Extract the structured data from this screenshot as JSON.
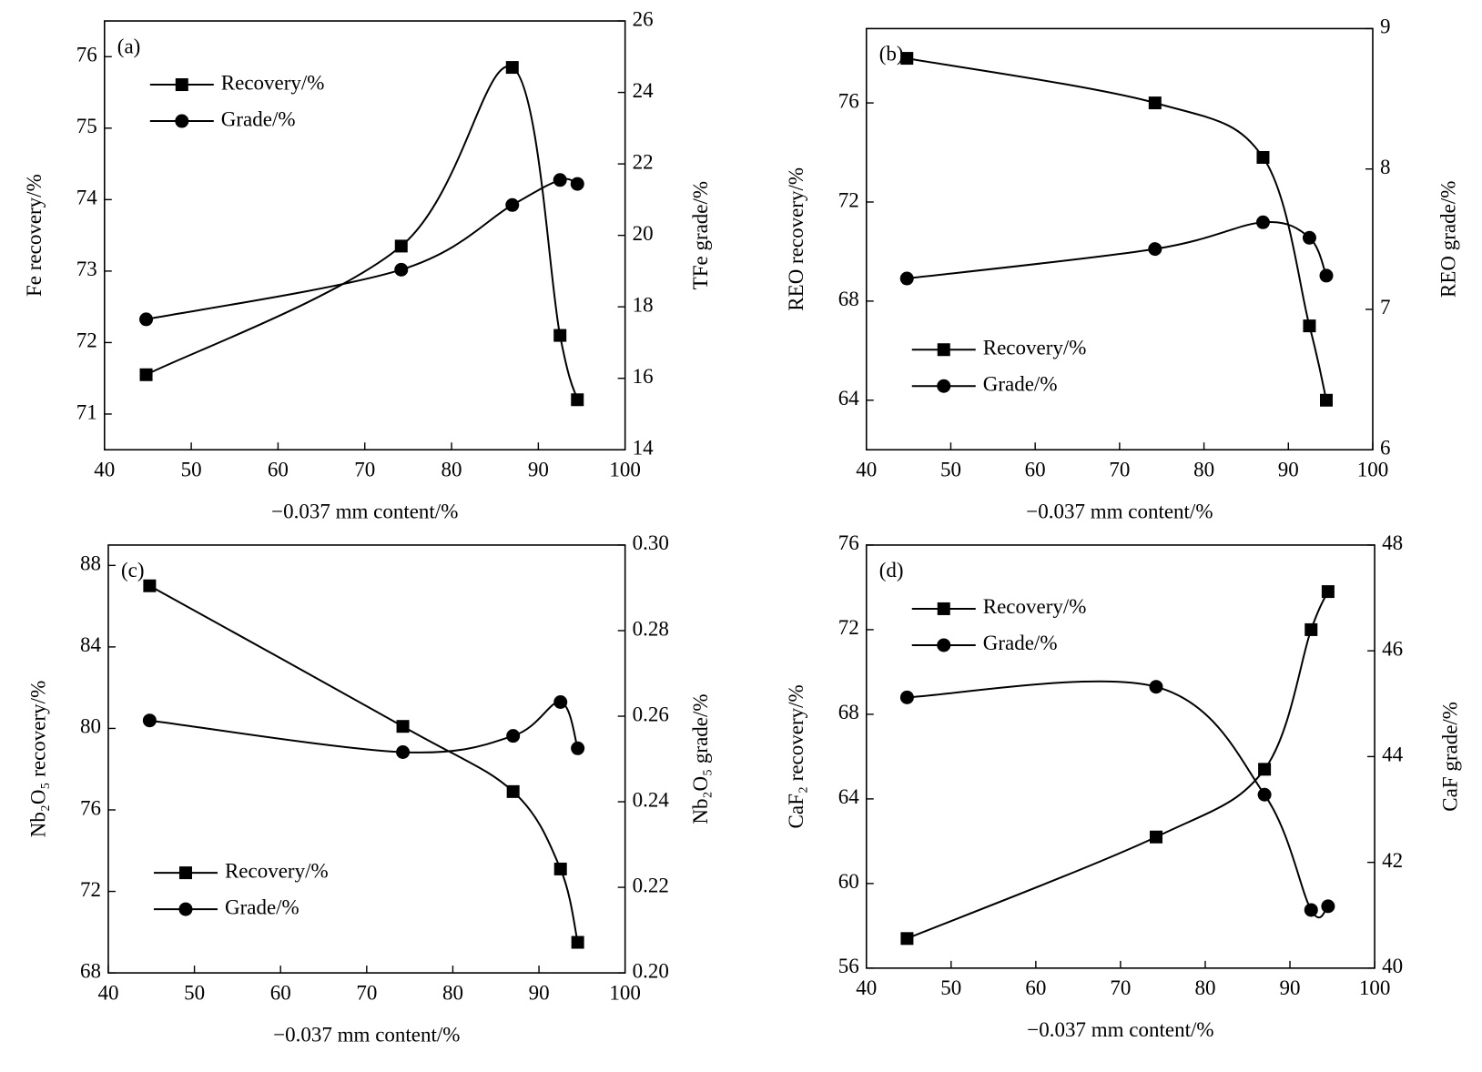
{
  "chart_data": [
    {
      "type": "line",
      "panel_label": "(a)",
      "xlabel": "−0.037 mm content/%",
      "ylabel": "Fe recovery/%",
      "y2label": "TFe grade/%",
      "x": [
        44.8,
        74.2,
        87,
        92.5,
        94.5
      ],
      "series": [
        {
          "name": "Recovery/%",
          "color": "#000000",
          "marker": "square",
          "axis": "y",
          "values": [
            71.55,
            73.35,
            75.85,
            72.1,
            71.2
          ]
        },
        {
          "name": "Grade/%",
          "color": "#000000",
          "marker": "circle",
          "axis": "y2",
          "values": [
            17.65,
            19.04,
            20.85,
            21.55,
            21.44
          ]
        }
      ],
      "xlim": [
        40,
        100
      ],
      "xticks": [
        40,
        50,
        60,
        70,
        80,
        90,
        100
      ],
      "ylim": [
        70.5,
        76.5
      ],
      "yticks": [
        71,
        72,
        73,
        74,
        75,
        76
      ],
      "y2lim": [
        14,
        26
      ],
      "y2ticks": [
        14,
        16,
        18,
        20,
        22,
        24,
        26
      ],
      "legend": "upper left"
    },
    {
      "type": "line",
      "panel_label": "(b)",
      "xlabel": "−0.037 mm content/%",
      "ylabel": "REO recovery/%",
      "y2label": "REO grade/%",
      "x": [
        44.8,
        74.2,
        87,
        92.5,
        94.5
      ],
      "series": [
        {
          "name": "Recovery/%",
          "color": "#000000",
          "marker": "square",
          "axis": "y",
          "values": [
            77.8,
            76.0,
            73.8,
            67.0,
            64.0
          ]
        },
        {
          "name": "Grade/%",
          "color": "#000000",
          "marker": "circle",
          "axis": "y2",
          "values": [
            7.22,
            7.43,
            7.62,
            7.51,
            7.24
          ]
        }
      ],
      "xlim": [
        40,
        100
      ],
      "xticks": [
        40,
        50,
        60,
        70,
        80,
        90,
        100
      ],
      "ylim": [
        62,
        79
      ],
      "yticks": [
        64,
        68,
        72,
        76
      ],
      "y2lim": [
        6,
        9
      ],
      "y2ticks": [
        6,
        7,
        8,
        9
      ],
      "legend": "lower left"
    },
    {
      "type": "line",
      "panel_label": "(c)",
      "xlabel": "−0.037 mm content/%",
      "ylabel": "Nb₂O₅ recovery/%",
      "y2label": "Nb₂O₅ grade/%",
      "x": [
        44.8,
        74.2,
        87,
        92.5,
        94.5
      ],
      "series": [
        {
          "name": "Recovery/%",
          "color": "#000000",
          "marker": "square",
          "axis": "y",
          "values": [
            87.0,
            80.1,
            76.9,
            73.1,
            69.5
          ]
        },
        {
          "name": "Grade/%",
          "color": "#000000",
          "marker": "circle",
          "axis": "y2",
          "values": [
            0.259,
            0.2516,
            0.2554,
            0.2633,
            0.2525
          ]
        }
      ],
      "xlim": [
        40,
        100
      ],
      "xticks": [
        40,
        50,
        60,
        70,
        80,
        90,
        100
      ],
      "ylim": [
        68,
        89
      ],
      "yticks": [
        68,
        72,
        76,
        80,
        84,
        88
      ],
      "y2lim": [
        0.2,
        0.3
      ],
      "y2ticks": [
        {
          "value": 0.2,
          "label": "0.20"
        },
        0.22,
        0.24,
        0.26,
        0.28,
        {
          "value": 0.3,
          "label": "0.30"
        }
      ],
      "legend": "lower left"
    },
    {
      "type": "line",
      "panel_label": "(d)",
      "xlabel": "−0.037 mm content/%",
      "ylabel": "CaF₂ recovery/%",
      "y2label": "CaF grade/%",
      "x": [
        44.8,
        74.2,
        87,
        92.5,
        94.5
      ],
      "series": [
        {
          "name": "Recovery/%",
          "color": "#000000",
          "marker": "square",
          "axis": "y",
          "values": [
            57.4,
            62.2,
            65.4,
            72.0,
            73.8
          ]
        },
        {
          "name": "Grade/%",
          "color": "#000000",
          "marker": "circle",
          "axis": "y2",
          "values": [
            45.12,
            45.32,
            43.28,
            41.1,
            41.17
          ]
        }
      ],
      "xlim": [
        40,
        100
      ],
      "xticks": [
        40,
        50,
        60,
        70,
        80,
        90,
        100
      ],
      "ylim": [
        56,
        76
      ],
      "yticks": [
        56,
        60,
        64,
        68,
        72,
        76
      ],
      "y2lim": [
        40,
        48
      ],
      "y2ticks": [
        40,
        42,
        44,
        46,
        48
      ],
      "legend": "upper left"
    }
  ]
}
